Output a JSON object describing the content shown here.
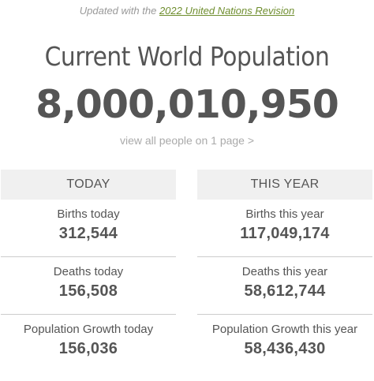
{
  "header": {
    "updated_prefix": "Updated with the ",
    "updated_link": "2022 United Nations Revision",
    "title": "Current World Population",
    "population": "8,000,010,950",
    "view_all": "view all people on 1 page >"
  },
  "today": {
    "header": "TODAY",
    "births_label": "Births today",
    "births_value": "312,544",
    "deaths_label": "Deaths today",
    "deaths_value": "156,508",
    "growth_label": "Population Growth today",
    "growth_value": "156,036"
  },
  "this_year": {
    "header": "THIS YEAR",
    "births_label": "Births this year",
    "births_value": "117,049,174",
    "deaths_label": "Deaths this year",
    "deaths_value": "58,612,744",
    "growth_label": "Population Growth this year",
    "growth_value": "58,436,430"
  },
  "colors": {
    "link": "#6f8e2f",
    "text": "#555555",
    "muted": "#aaaaaa",
    "header_bg": "#f0f0f0"
  }
}
